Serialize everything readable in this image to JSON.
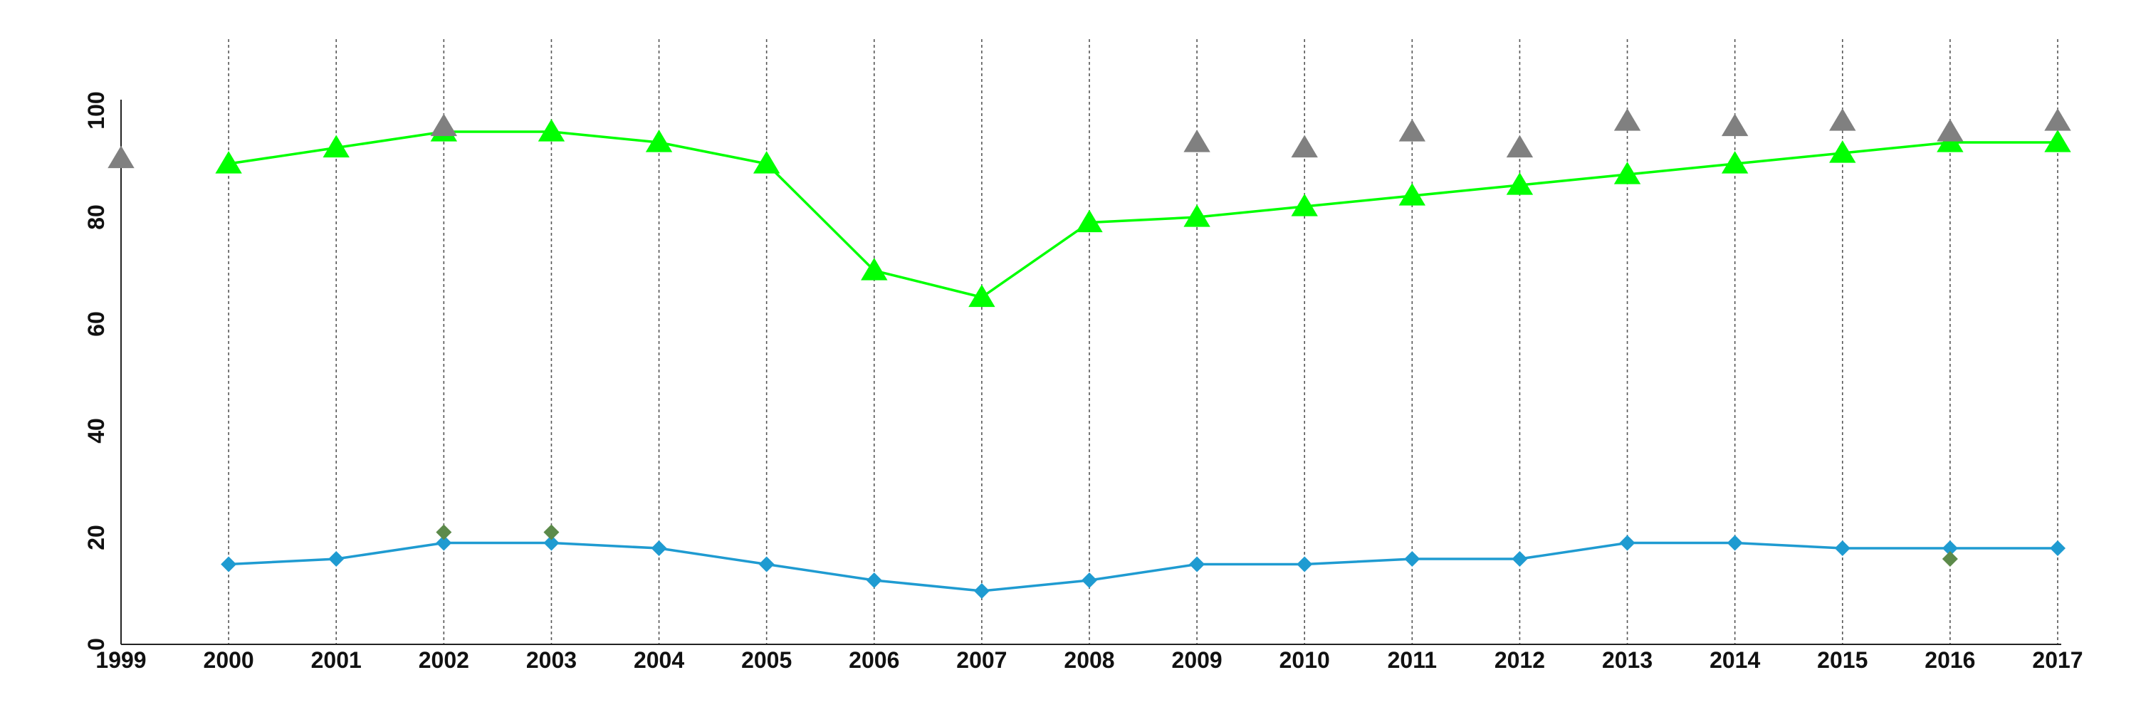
{
  "chart_data": {
    "type": "line",
    "title": "",
    "xlabel": "",
    "ylabel": "",
    "x": [
      1999,
      2000,
      2001,
      2002,
      2003,
      2004,
      2005,
      2006,
      2007,
      2008,
      2009,
      2010,
      2011,
      2012,
      2013,
      2014,
      2015,
      2016,
      2017
    ],
    "x_tick_labels": [
      "1999",
      "2000",
      "2001",
      "2002",
      "2003",
      "2004",
      "2005",
      "2006",
      "2007",
      "2008",
      "2009",
      "2010",
      "2011",
      "2012",
      "2013",
      "2014",
      "2015",
      "2016",
      "2017"
    ],
    "xlim": [
      1999,
      2017
    ],
    "ylim": [
      0,
      100
    ],
    "y_ticks": [
      0,
      20,
      40,
      60,
      80,
      100
    ],
    "y_tick_labels": [
      "0",
      "20",
      "40",
      "60",
      "80",
      "100"
    ],
    "grid": "vertical dotted lines at each year",
    "legend": "none",
    "series": [
      {
        "kind": "line",
        "marker": "triangle",
        "color": "#00ff00",
        "values": [
          null,
          90,
          93,
          96,
          96,
          94,
          90,
          70,
          65,
          79,
          80,
          82,
          84,
          86,
          88,
          90,
          92,
          94,
          94
        ]
      },
      {
        "kind": "line",
        "marker": "diamond",
        "color": "#1f9bd1",
        "values": [
          null,
          15,
          16,
          19,
          19,
          18,
          15,
          12,
          10,
          12,
          15,
          15,
          16,
          16,
          19,
          19,
          18,
          18,
          18
        ]
      },
      {
        "kind": "markers",
        "marker": "triangle",
        "color": "#808080",
        "values": [
          91,
          null,
          null,
          97,
          null,
          null,
          null,
          null,
          null,
          null,
          94,
          93,
          96,
          93,
          98,
          97,
          98,
          96,
          98
        ]
      },
      {
        "kind": "markers",
        "marker": "diamond",
        "color": "#5c8a4a",
        "values": [
          null,
          null,
          null,
          21,
          21,
          null,
          null,
          null,
          null,
          null,
          null,
          null,
          null,
          null,
          null,
          null,
          null,
          16,
          null
        ]
      }
    ]
  }
}
